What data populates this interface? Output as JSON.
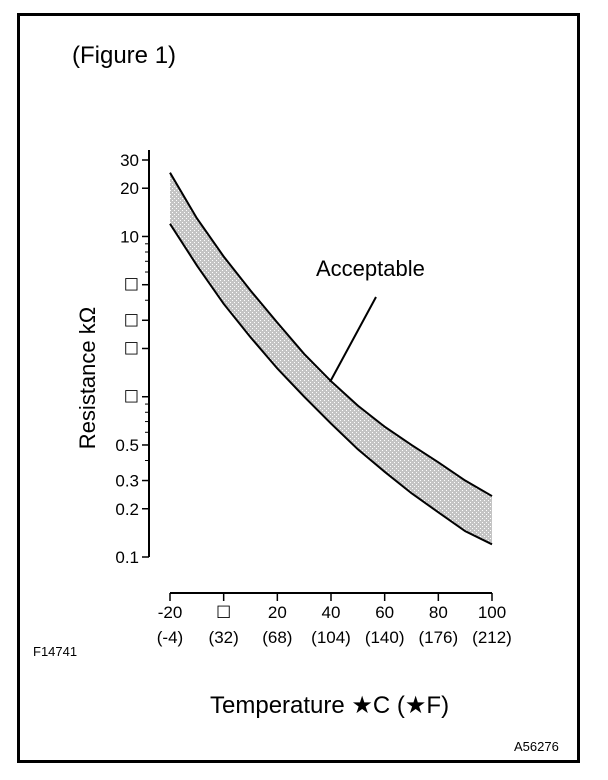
{
  "figure_title": "(Figure 1)",
  "footer_left_code": "F14741",
  "footer_right_code": "A56276",
  "chart_data": {
    "type": "area",
    "title": "",
    "ylabel": "Resistance kΩ",
    "xlabel": "Temperature ★C (★F)",
    "yscale": "log",
    "ylim": [
      0.1,
      30
    ],
    "xlim": [
      -20,
      100
    ],
    "y_tick_labels": [
      {
        "value": 30,
        "label": "30"
      },
      {
        "value": 20,
        "label": "20"
      },
      {
        "value": 10,
        "label": "10"
      },
      {
        "value": 5,
        "label": "☐"
      },
      {
        "value": 3,
        "label": "☐"
      },
      {
        "value": 2,
        "label": "☐"
      },
      {
        "value": 1,
        "label": "☐"
      },
      {
        "value": 0.5,
        "label": "0.5"
      },
      {
        "value": 0.3,
        "label": "0.3"
      },
      {
        "value": 0.2,
        "label": "0.2"
      },
      {
        "value": 0.1,
        "label": "0.1"
      }
    ],
    "x_ticks": [
      {
        "c": -20,
        "label_c": "-20",
        "label_f": "(-4)"
      },
      {
        "c": 0,
        "label_c": "☐",
        "label_f": "(32)"
      },
      {
        "c": 20,
        "label_c": "20",
        "label_f": "(68)"
      },
      {
        "c": 40,
        "label_c": "40",
        "label_f": "(104)"
      },
      {
        "c": 60,
        "label_c": "60",
        "label_f": "(140)"
      },
      {
        "c": 80,
        "label_c": "80",
        "label_f": "(176)"
      },
      {
        "c": 100,
        "label_c": "100",
        "label_f": "(212)"
      }
    ],
    "series": [
      {
        "x": [
          -20,
          -10,
          0,
          10,
          20,
          30,
          40,
          50,
          60,
          70,
          80,
          90,
          100
        ],
        "values": [
          25,
          13,
          7.5,
          4.6,
          2.9,
          1.85,
          1.25,
          0.88,
          0.65,
          0.5,
          0.39,
          0.3,
          0.24
        ]
      },
      {
        "x": [
          -20,
          -10,
          0,
          10,
          20,
          30,
          40,
          50,
          60,
          70,
          80,
          90,
          100
        ],
        "values": [
          12,
          6.6,
          3.8,
          2.35,
          1.5,
          1.0,
          0.68,
          0.47,
          0.34,
          0.25,
          0.19,
          0.145,
          0.12
        ]
      }
    ],
    "annotation": "Acceptable",
    "shading_color": "#c4c4c4"
  }
}
